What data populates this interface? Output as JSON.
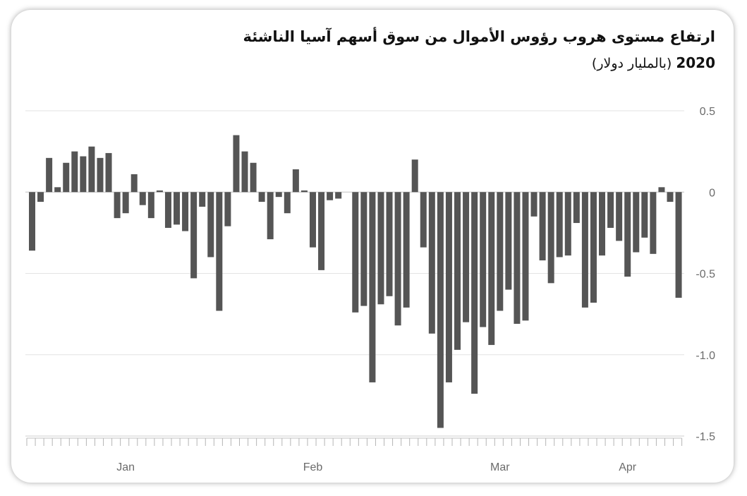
{
  "chart_data": {
    "type": "bar",
    "title": "ارتفاع مستوى هروب رؤوس الأموال من سوق أسهم آسيا الناشئة",
    "subtitle_year": "2020",
    "subtitle_unit": "(بالمليار دولار)",
    "ylim": [
      -1.5,
      0.5
    ],
    "y_ticks": [
      0.5,
      0,
      -0.5,
      -1.0,
      -1.5
    ],
    "y_tick_labels": [
      "0.5",
      "0",
      "-0.5",
      "-1.0",
      "-1.5"
    ],
    "x_tick_labels": [
      "Jan",
      "Feb",
      "Mar",
      "Apr"
    ],
    "x_tick_bar_index": [
      11,
      33,
      55,
      70
    ],
    "grid": true,
    "color": "#555555",
    "values": [
      -0.36,
      -0.06,
      0.21,
      0.03,
      0.18,
      0.25,
      0.22,
      0.28,
      0.21,
      0.24,
      -0.16,
      -0.13,
      0.11,
      -0.08,
      -0.16,
      0.01,
      -0.22,
      -0.2,
      -0.24,
      -0.53,
      -0.09,
      -0.4,
      -0.73,
      -0.21,
      0.35,
      0.25,
      0.18,
      -0.06,
      -0.29,
      -0.03,
      -0.13,
      0.14,
      0.01,
      -0.34,
      -0.48,
      -0.05,
      -0.04,
      0,
      -0.74,
      -0.7,
      -1.17,
      -0.69,
      -0.64,
      -0.82,
      -0.71,
      0.2,
      -0.34,
      -0.87,
      -1.45,
      -1.17,
      -0.97,
      -0.8,
      -1.24,
      -0.83,
      -0.94,
      -0.73,
      -0.6,
      -0.81,
      -0.79,
      -0.15,
      -0.42,
      -0.56,
      -0.4,
      -0.39,
      -0.19,
      -0.71,
      -0.68,
      -0.39,
      -0.22,
      -0.3,
      -0.52,
      -0.37,
      -0.28,
      -0.38,
      0.03,
      -0.06,
      -0.65
    ]
  }
}
